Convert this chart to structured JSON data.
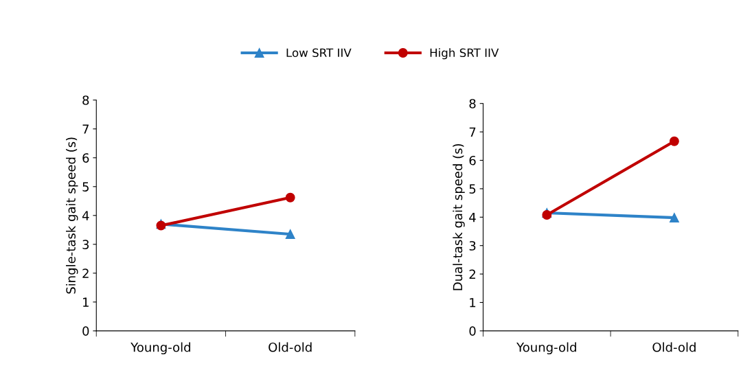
{
  "chart_data": [
    {
      "type": "line",
      "categories": [
        "Young-old",
        "Old-old"
      ],
      "ylabel": "Single-task gait speed (s)",
      "ylim": [
        0,
        8
      ],
      "yticks": [
        0,
        1,
        2,
        3,
        4,
        5,
        6,
        7,
        8
      ],
      "grid": false,
      "legend": "top",
      "series": [
        {
          "name": "Low SRT IIV",
          "color": "#2e83c8",
          "marker": "triangle",
          "values": [
            3.7,
            3.35
          ]
        },
        {
          "name": "High SRT IIV",
          "color": "#c00000",
          "marker": "circle",
          "values": [
            3.65,
            4.62
          ]
        }
      ]
    },
    {
      "type": "line",
      "categories": [
        "Young-old",
        "Old-old"
      ],
      "ylabel": "Dual-task gait speed (s)",
      "ylim": [
        0,
        8
      ],
      "yticks": [
        0,
        1,
        2,
        3,
        4,
        5,
        6,
        7,
        8
      ],
      "grid": false,
      "series": [
        {
          "color": "#2e83c8",
          "marker": "triangle",
          "values": [
            4.15,
            3.98
          ]
        },
        {
          "color": "#c00000",
          "marker": "circle",
          "values": [
            4.08,
            6.67
          ]
        }
      ]
    }
  ]
}
